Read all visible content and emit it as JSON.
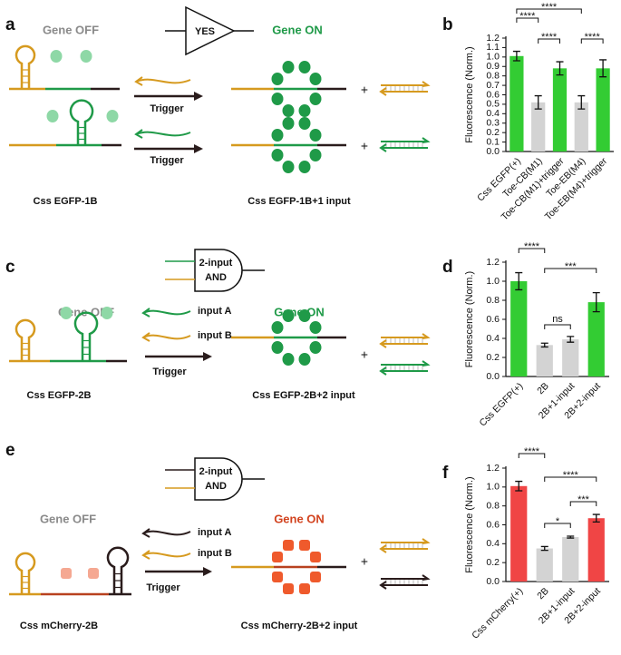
{
  "panel_labels": [
    "a",
    "b",
    "c",
    "d",
    "e",
    "f"
  ],
  "panel_a": {
    "gate": "YES",
    "gene_off": "Gene OFF",
    "gene_on": "Gene ON",
    "trigger_1": "Trigger",
    "trigger_2": "Trigger",
    "plus_1": "+",
    "plus_2": "+",
    "left_label": "Css EGFP-1B",
    "right_label": "Css EGFP-1B+1 input"
  },
  "panel_c": {
    "gate": [
      "2-input",
      "AND"
    ],
    "gene_off": "Gene OFF",
    "gene_on": "Gene ON",
    "input_a": "input A",
    "input_b": "input B",
    "trigger": "Trigger",
    "plus": "+",
    "left_label": "Css EGFP-2B",
    "right_label": "Css EGFP-2B+2 input"
  },
  "panel_e": {
    "gate": [
      "2-input",
      "AND"
    ],
    "gene_off": "Gene OFF",
    "gene_on": "Gene ON",
    "input_a": "input A",
    "input_b": "input B",
    "trigger": "Trigger",
    "plus": "+",
    "left_label": "Css mCherry-2B",
    "right_label": "Css mCherry-2B+2 input"
  },
  "chart_data": [
    {
      "type": "bar",
      "ylabel": "Fluorescence (Norm.)",
      "categories": [
        "Css EGFP(+)",
        "Toe-CB(M1)",
        "Toe-CB(M1)+trigger",
        "Toe-EB(M4)",
        "Toe-EB(M4)+trigger"
      ],
      "values": [
        1.01,
        0.52,
        0.88,
        0.52,
        0.88
      ],
      "errors": [
        0.05,
        0.07,
        0.07,
        0.07,
        0.09
      ],
      "colors": [
        "#33cc33",
        "#d3d3d3",
        "#33cc33",
        "#d3d3d3",
        "#33cc33"
      ],
      "ylim": [
        0,
        1.2
      ],
      "yticks": [
        {
          "value": 0,
          "label": "0.0"
        },
        0.1,
        0.2,
        0.3,
        0.4,
        0.5,
        0.6,
        0.7,
        0.8,
        0.9,
        {
          "value": 1,
          "label": "1.0"
        },
        1.1,
        1.2
      ],
      "annotations": [
        {
          "text": "****",
          "between": [
            "Css EGFP(+)",
            "Toe-EB(M4)"
          ]
        },
        {
          "text": "****",
          "between": [
            "Css EGFP(+)",
            "Toe-CB(M1)"
          ]
        },
        {
          "text": "****",
          "between": [
            "Toe-CB(M1)",
            "Toe-CB(M1)+trigger"
          ]
        },
        {
          "text": "****",
          "between": [
            "Toe-EB(M4)",
            "Toe-EB(M4)+trigger"
          ]
        }
      ]
    },
    {
      "type": "bar",
      "ylabel": "Fluorescence (Norm.)",
      "categories": [
        "Css EGFP(+)",
        "2B",
        "2B+1-input",
        "2B+2-input"
      ],
      "values": [
        1.0,
        0.33,
        0.39,
        0.78
      ],
      "errors": [
        0.09,
        0.02,
        0.03,
        0.1
      ],
      "colors": [
        "#33cc33",
        "#d3d3d3",
        "#d3d3d3",
        "#33cc33"
      ],
      "ylim": [
        0,
        1.2
      ],
      "yticks": [
        {
          "value": 0,
          "label": "0.0"
        },
        0.2,
        0.4,
        0.6,
        0.8,
        {
          "value": 1,
          "label": "1.0"
        },
        1.2
      ],
      "annotations": [
        {
          "text": "****",
          "between": [
            "Css EGFP(+)",
            "2B"
          ]
        },
        {
          "text": "***",
          "between": [
            "2B",
            "2B+2-input"
          ]
        },
        {
          "text": "ns",
          "between": [
            "2B",
            "2B+1-input"
          ]
        }
      ]
    },
    {
      "type": "bar",
      "ylabel": "Fluorescence (Norm.)",
      "categories": [
        "Css mCherry(+)",
        "2B",
        "2B+1-input",
        "2B+2-input"
      ],
      "values": [
        1.01,
        0.35,
        0.47,
        0.67
      ],
      "errors": [
        0.05,
        0.02,
        0.01,
        0.04
      ],
      "colors": [
        "#f04545",
        "#d3d3d3",
        "#d3d3d3",
        "#f04545"
      ],
      "ylim": [
        0,
        1.2
      ],
      "yticks": [
        {
          "value": 0,
          "label": "0.0"
        },
        0.2,
        0.4,
        0.6,
        0.8,
        {
          "value": 1,
          "label": "1.0"
        },
        1.2
      ],
      "annotations": [
        {
          "text": "****",
          "between": [
            "Css mCherry(+)",
            "2B"
          ]
        },
        {
          "text": "****",
          "between": [
            "2B",
            "2B+2-input"
          ]
        },
        {
          "text": "***",
          "between": [
            "2B+1-input",
            "2B+2-input"
          ]
        },
        {
          "text": "*",
          "between": [
            "2B",
            "2B+1-input"
          ]
        }
      ]
    }
  ]
}
